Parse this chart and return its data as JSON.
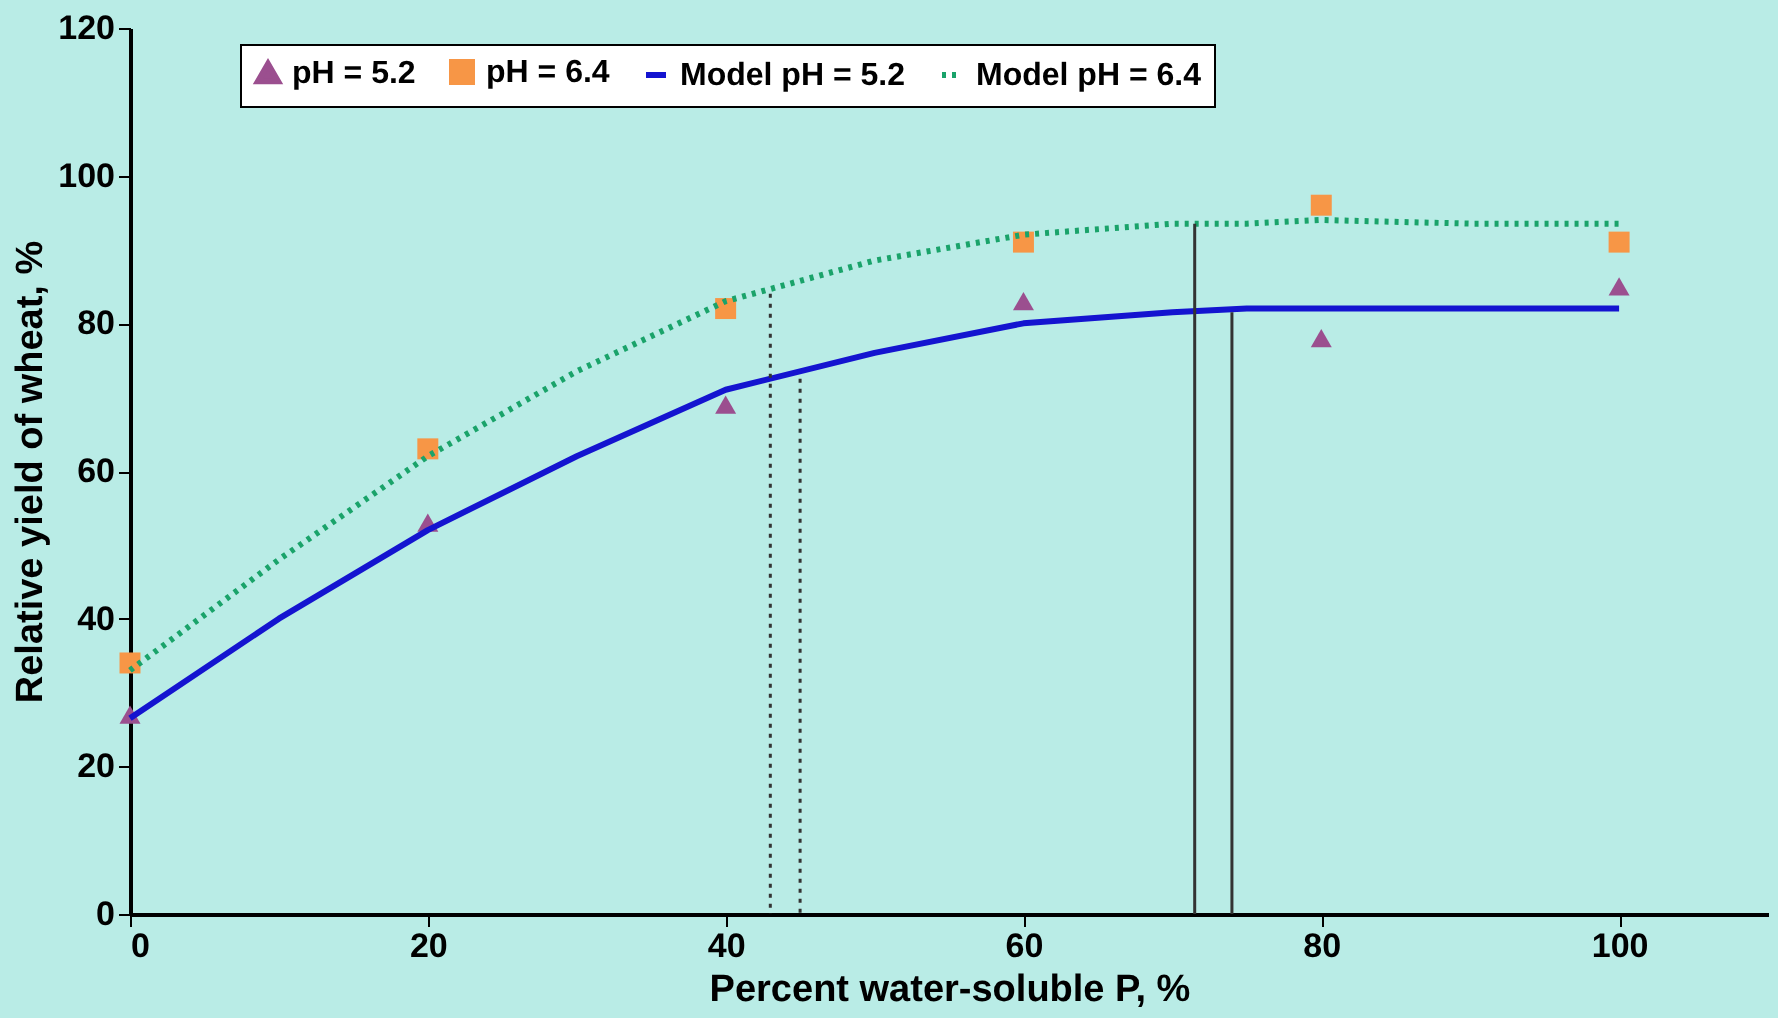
{
  "chart_data": {
    "type": "scatter",
    "xlabel": "Percent water-soluble P, %",
    "ylabel": "Relative yield of wheat, %",
    "xlim": [
      0,
      110
    ],
    "xticks": [
      0,
      20,
      40,
      60,
      80,
      100
    ],
    "ylim": [
      0,
      120
    ],
    "yticks": [
      0,
      20,
      40,
      60,
      80,
      100,
      120
    ],
    "grid": false,
    "legend": "top",
    "series": [
      {
        "name": "pH = 5.2",
        "type": "scatter",
        "color": "#9b4f8f",
        "marker": "triangle",
        "x": [
          0,
          20,
          40,
          60,
          80,
          100
        ],
        "values": [
          27,
          53,
          69,
          83,
          78,
          85
        ]
      },
      {
        "name": "pH = 6.4",
        "type": "scatter",
        "color": "#f79646",
        "marker": "square",
        "x": [
          0,
          20,
          40,
          60,
          80,
          100
        ],
        "values": [
          34,
          63,
          82,
          91,
          96,
          91
        ]
      },
      {
        "name": "Model pH = 5.2",
        "type": "line",
        "color": "#1414d0",
        "marker": "none",
        "line_style": "solid",
        "x": [
          0,
          10,
          20,
          30,
          40,
          50,
          60,
          70,
          75,
          80,
          90,
          100
        ],
        "values": [
          26.5,
          40,
          52,
          62,
          71,
          76,
          80,
          81.5,
          82,
          82,
          82,
          82
        ]
      },
      {
        "name": "Model pH = 6.4",
        "type": "line",
        "color": "#1aa36a",
        "marker": "none",
        "line_style": "dotted",
        "x": [
          0,
          10,
          20,
          30,
          40,
          50,
          60,
          70,
          75,
          80,
          90,
          100
        ],
        "values": [
          33,
          48,
          62,
          73.5,
          83,
          88.5,
          92,
          93.5,
          93.5,
          94,
          93.5,
          93.5
        ]
      },
      {
        "type": "line",
        "color": "#333333",
        "line_style": "dotted",
        "x": [
          43,
          43
        ],
        "values": [
          84,
          0
        ]
      },
      {
        "type": "line",
        "color": "#333333",
        "line_style": "dotted",
        "x": [
          45,
          45
        ],
        "values": [
          72.5,
          0
        ]
      },
      {
        "type": "line",
        "color": "#333333",
        "line_style": "solid",
        "x": [
          71.5,
          71.5
        ],
        "values": [
          93.5,
          0
        ]
      },
      {
        "type": "line",
        "color": "#333333",
        "line_style": "solid",
        "x": [
          74,
          74
        ],
        "values": [
          81.5,
          0
        ]
      }
    ]
  }
}
